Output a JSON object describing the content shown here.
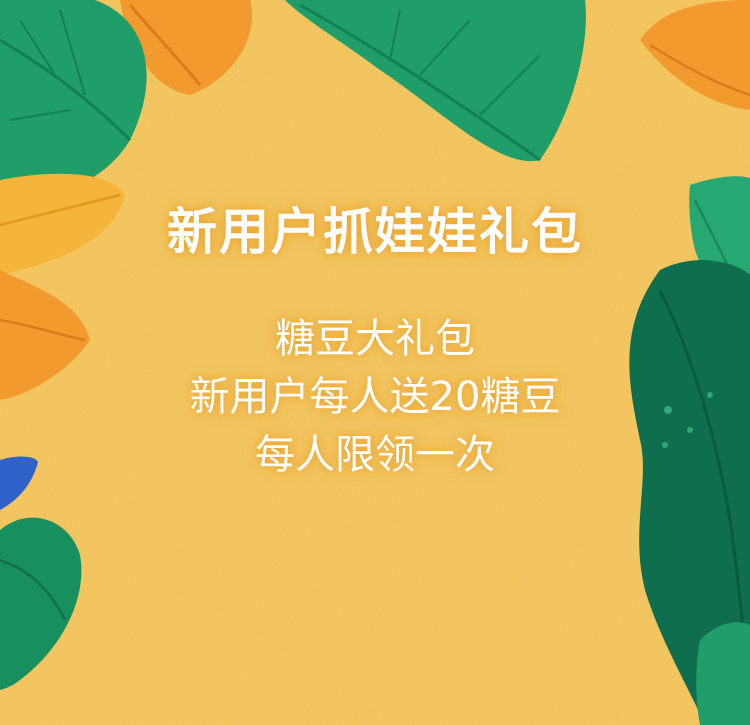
{
  "poster": {
    "title": "新用户抓娃娃礼包",
    "lines": [
      "糖豆大礼包",
      "新用户每人送20糖豆",
      "每人限领一次"
    ]
  },
  "colors": {
    "background": "#f8c657",
    "text": "#ffffff",
    "leaf_green": "#1f9e6a",
    "leaf_dark_green": "#0e6e4e",
    "leaf_orange": "#f29a2e",
    "leaf_blue": "#2f62c9"
  }
}
